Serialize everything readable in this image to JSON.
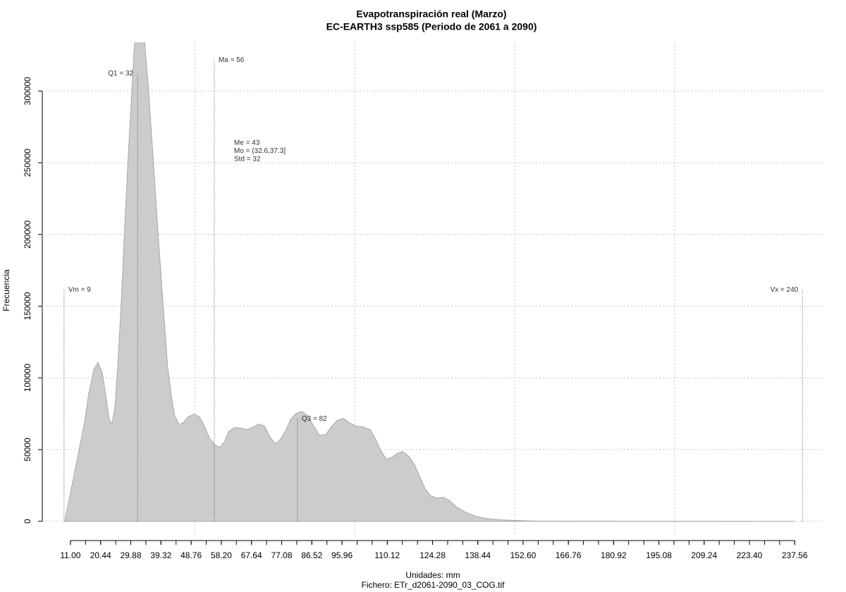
{
  "chart_data": {
    "type": "area",
    "title": "Evapotranspiración real (Marzo)",
    "subtitle": "EC-EARTH3 ssp585 (Periodo de 2061 a 2090)",
    "x_label": "Unidades: mm",
    "caption": "Fichero: ETr_d2061-2090_03_COG.tif",
    "y_label": "Frecuencia",
    "color": "#cccccc",
    "x": [
      9.2,
      11.0,
      13.2,
      15.4,
      16.7,
      18.3,
      19.6,
      21.0,
      22.0,
      23.1,
      24.0,
      24.9,
      25.8,
      26.9,
      28.0,
      29.1,
      30.2,
      31.1,
      32.6,
      34.2,
      35.3,
      36.8,
      38.4,
      40.1,
      41.4,
      42.5,
      43.6,
      45.0,
      46.3,
      47.8,
      49.6,
      51.4,
      52.9,
      54.5,
      56.2,
      57.8,
      59.1,
      60.6,
      62.4,
      64.4,
      66.2,
      67.9,
      69.9,
      71.7,
      73.4,
      75.0,
      76.5,
      78.3,
      79.8,
      81.6,
      83.4,
      85.1,
      87.1,
      88.9,
      90.9,
      92.6,
      94.4,
      96.4,
      98.1,
      100.3,
      102.5,
      104.8,
      106.3,
      108.1,
      109.8,
      111.4,
      113.1,
      114.9,
      116.9,
      118.7,
      120.4,
      122.0,
      123.7,
      125.7,
      127.7,
      129.7,
      131.9,
      134.5,
      137.8,
      141.2,
      145.6,
      151.1,
      156.6,
      237.6
    ],
    "values": [
      0,
      19700,
      44300,
      68900,
      88500,
      105700,
      110700,
      103300,
      88500,
      71300,
      67900,
      78700,
      108200,
      152500,
      206600,
      255700,
      300000,
      334400,
      345000,
      334400,
      304900,
      255700,
      201600,
      147500,
      108200,
      88500,
      73800,
      67400,
      68900,
      72800,
      74800,
      72800,
      66400,
      58000,
      53100,
      51600,
      55100,
      62900,
      65400,
      64900,
      63900,
      65400,
      67900,
      66400,
      59000,
      54100,
      56600,
      62900,
      70800,
      75200,
      76700,
      73800,
      66400,
      60000,
      60500,
      65900,
      70300,
      71800,
      68900,
      66400,
      65900,
      63900,
      58000,
      49200,
      43300,
      44300,
      47200,
      48700,
      45200,
      39300,
      30500,
      22600,
      17700,
      16200,
      16700,
      14300,
      9800,
      6400,
      3400,
      2000,
      1000,
      500,
      100,
      0
    ],
    "xlim": [
      2.2,
      247.0
    ],
    "ylim": [
      -10000,
      334000
    ],
    "xticks": [
      {
        "value": 11,
        "label": "11.00"
      },
      20.44,
      29.88,
      39.32,
      48.76,
      {
        "value": 58.2,
        "label": "58.20"
      },
      67.64,
      77.08,
      86.52,
      95.96,
      110.12,
      124.28,
      138.44,
      {
        "value": 152.6,
        "label": "152.60"
      },
      166.76,
      180.92,
      195.08,
      209.24,
      {
        "value": 223.4,
        "label": "223.40"
      },
      237.56
    ],
    "xminorticks": [
      11,
      15.72,
      20.44,
      25.16,
      29.88,
      34.6,
      39.32,
      44.04,
      48.76,
      53.48,
      58.2,
      62.92,
      67.64,
      72.36,
      77.08,
      81.8,
      86.52,
      91.24,
      95.96,
      100.68,
      105.4,
      110.12,
      114.84,
      119.56,
      124.28,
      129,
      133.72,
      138.44,
      143.16,
      147.88,
      152.6,
      157.32,
      162.04,
      166.76,
      171.48,
      176.2,
      180.92,
      185.64,
      190.36,
      195.08,
      199.8,
      204.52,
      209.24,
      213.96,
      218.68,
      223.4,
      228.12,
      232.84,
      237.56
    ],
    "yticks": [
      0,
      50000,
      100000,
      150000,
      200000,
      250000,
      300000
    ],
    "xgrid": [
      50,
      100,
      150,
      200
    ],
    "grid": true,
    "annotations": [
      {
        "label": "Vm = 9",
        "x": 9,
        "y": 161300
      },
      {
        "label": "Q1 = 32",
        "x": 32,
        "y": 312300
      },
      {
        "label": "Ma = 56",
        "x": 56,
        "y": 321600
      },
      {
        "label": "Q3 = 82",
        "x": 82,
        "y": 71300
      },
      {
        "label": "Vx = 240",
        "x": 240,
        "y": 161300
      }
    ],
    "stats": [
      "Me = 43",
      "Mo = (32.6,37.3]",
      "Std = 32"
    ]
  }
}
